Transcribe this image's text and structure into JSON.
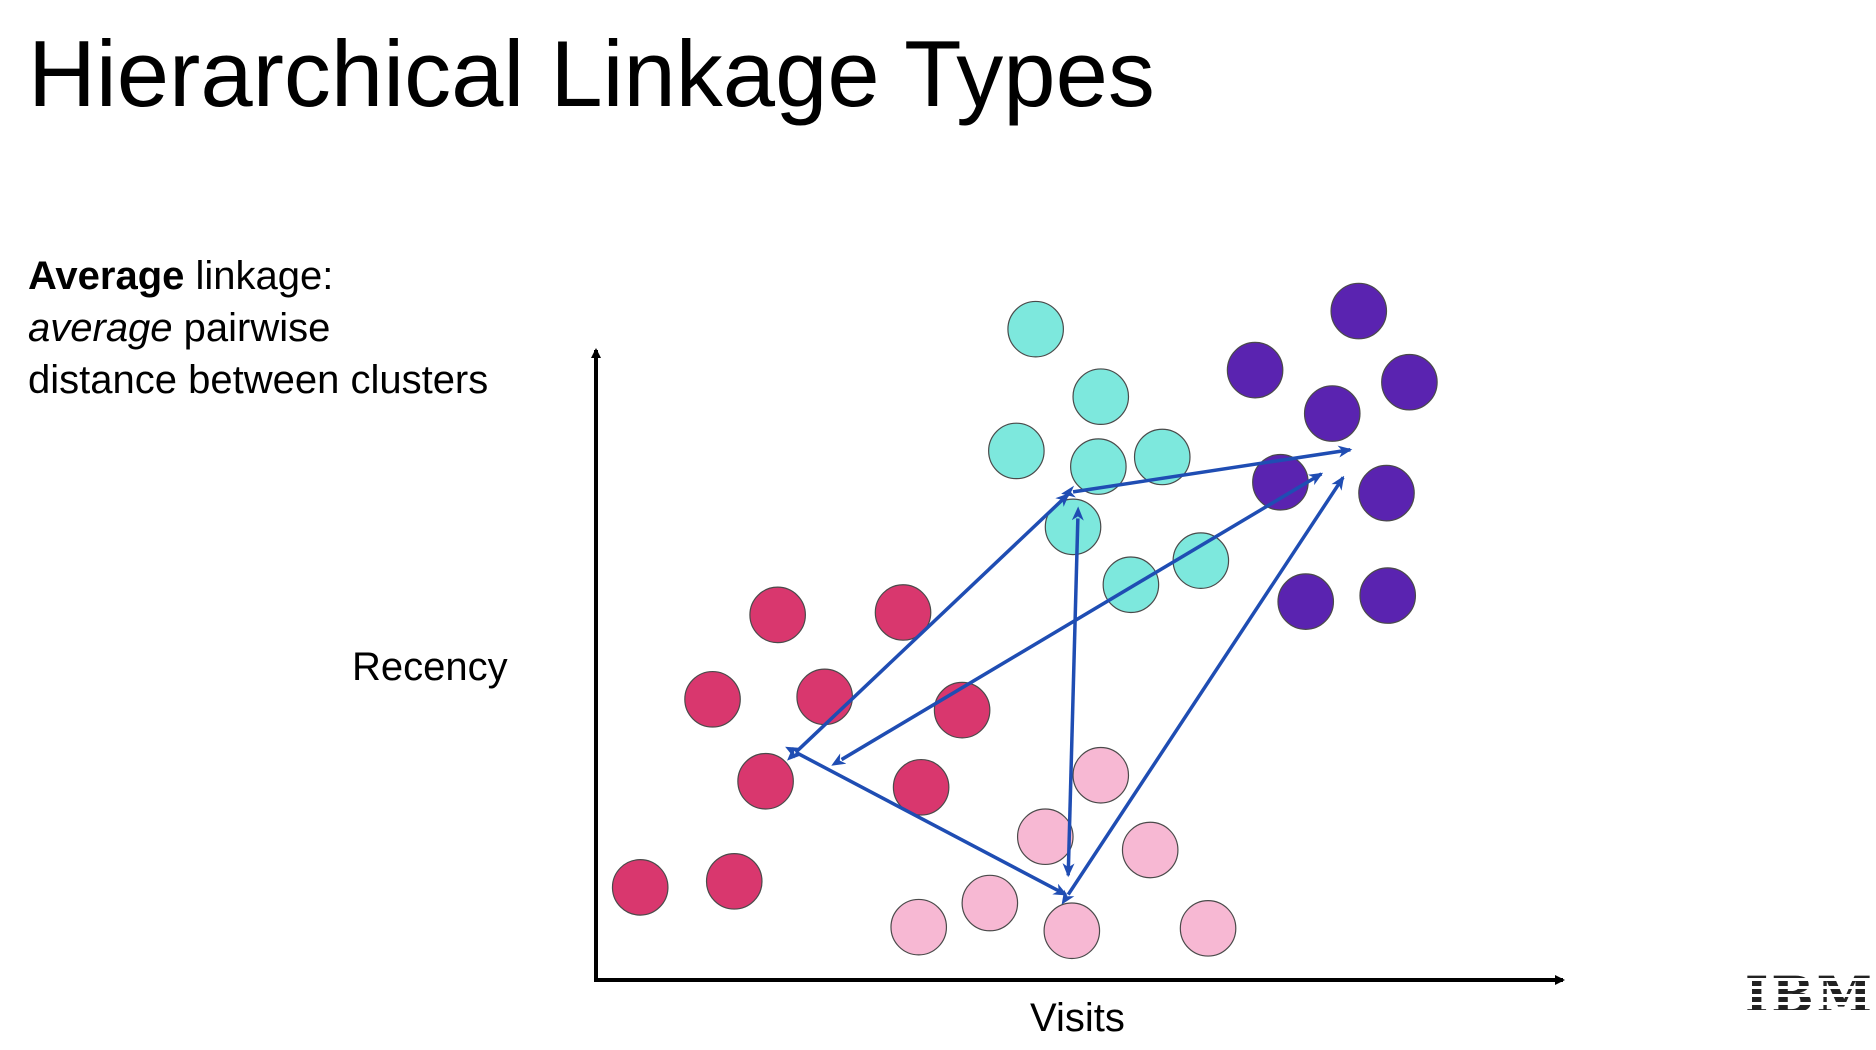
{
  "title": "Hierarchical Linkage Types",
  "description": {
    "line1_bold": "Average",
    "line1_rest": " linkage:",
    "line2_italic": "average",
    "line2_rest": " pairwise",
    "line3": "distance between clusters"
  },
  "axes": {
    "x_label": "Visits",
    "y_label": "Recency"
  },
  "logo": "IBM",
  "colors": {
    "axis": "#000000",
    "arrow": "#1f4db3",
    "cluster_red": "#d9376e",
    "cluster_pink": "#f7b8d3",
    "cluster_cyan": "#7de8dd",
    "cluster_purple": "#5a23b0"
  },
  "clusters": [
    {
      "id": "red",
      "color": "#d9376e",
      "points": [
        [
          645,
          510
        ],
        [
          749,
          508
        ],
        [
          591,
          580
        ],
        [
          684,
          578
        ],
        [
          798,
          589
        ],
        [
          635,
          648
        ],
        [
          764,
          653
        ],
        [
          531,
          736
        ],
        [
          609,
          731
        ]
      ]
    },
    {
      "id": "pink",
      "color": "#f7b8d3",
      "points": [
        [
          913,
          643
        ],
        [
          867,
          694
        ],
        [
          954,
          705
        ],
        [
          821,
          749
        ],
        [
          762,
          769
        ],
        [
          889,
          772
        ],
        [
          1002,
          770
        ]
      ]
    },
    {
      "id": "cyan",
      "color": "#7de8dd",
      "points": [
        [
          859,
          273
        ],
        [
          913,
          329
        ],
        [
          843,
          374
        ],
        [
          911,
          387
        ],
        [
          964,
          379
        ],
        [
          890,
          437
        ],
        [
          938,
          485
        ],
        [
          996,
          465
        ]
      ]
    },
    {
      "id": "purple",
      "color": "#5a23b0",
      "points": [
        [
          1127,
          258
        ],
        [
          1041,
          307
        ],
        [
          1169,
          317
        ],
        [
          1105,
          343
        ],
        [
          1062,
          400
        ],
        [
          1150,
          409
        ],
        [
          1083,
          499
        ],
        [
          1151,
          494
        ]
      ]
    }
  ],
  "linkage_arrows": [
    {
      "from": [
        660,
        624
      ],
      "to": [
        886,
        410
      ]
    },
    {
      "from": [
        698,
        630
      ],
      "to": [
        1096,
        393
      ]
    },
    {
      "from": [
        660,
        624
      ],
      "to": [
        884,
        742
      ]
    },
    {
      "from": [
        894,
        430
      ],
      "to": [
        886,
        726
      ]
    },
    {
      "from": [
        886,
        742
      ],
      "to": [
        1114,
        396
      ]
    },
    {
      "from": [
        890,
        408
      ],
      "to": [
        1120,
        373
      ]
    }
  ]
}
